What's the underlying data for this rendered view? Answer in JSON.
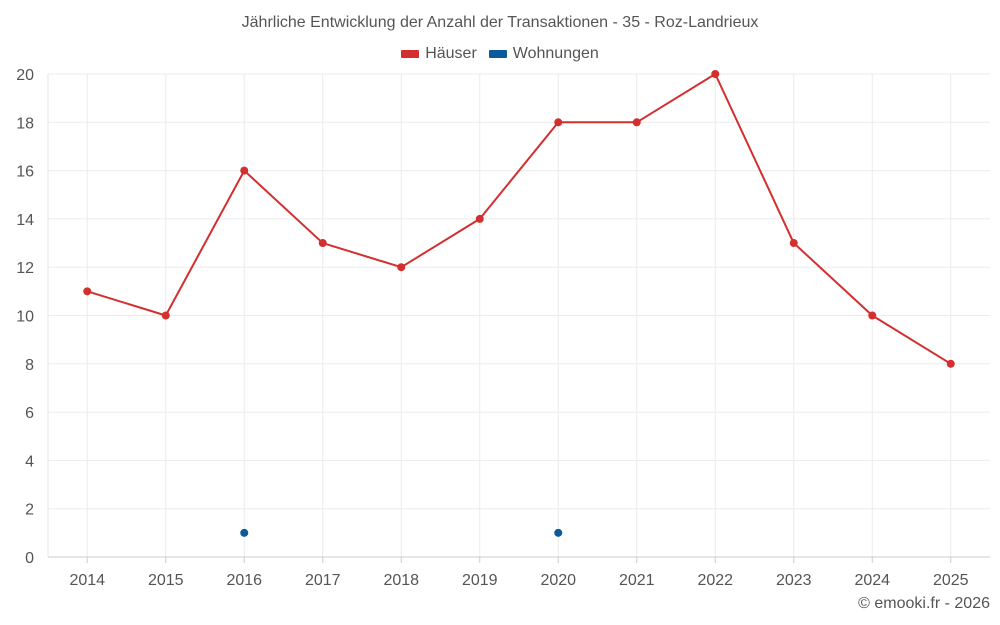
{
  "chart_data": {
    "type": "line",
    "title": "Jährliche Entwicklung der Anzahl der Transaktionen - 35 - Roz-Landrieux",
    "categories": [
      "2014",
      "2015",
      "2016",
      "2017",
      "2018",
      "2019",
      "2020",
      "2021",
      "2022",
      "2023",
      "2024",
      "2025"
    ],
    "series": [
      {
        "name": "Häuser",
        "color": "#d32f2f",
        "values": [
          11,
          10,
          16,
          13,
          12,
          14,
          18,
          18,
          20,
          13,
          10,
          8
        ]
      },
      {
        "name": "Wohnungen",
        "color": "#0a5a9c",
        "values": [
          null,
          null,
          1,
          null,
          null,
          null,
          1,
          null,
          null,
          null,
          null,
          null
        ]
      }
    ],
    "ylim": [
      0,
      20
    ],
    "yticks": [
      0,
      2,
      4,
      6,
      8,
      10,
      12,
      14,
      16,
      18,
      20
    ],
    "xlabel": "",
    "ylabel": "",
    "grid": true,
    "legend": "top-center"
  },
  "credit": "© emooki.fr - 2026"
}
